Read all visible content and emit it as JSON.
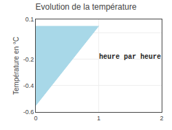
{
  "chart_data": {
    "type": "area",
    "title": "Evolution de la température",
    "ylabel": "Température en °C",
    "x": [
      0,
      0,
      1
    ],
    "values": [
      0.05,
      -0.55,
      0.05
    ],
    "color": "#a8d8e8",
    "xlim": [
      0,
      2
    ],
    "ylim": [
      -0.6,
      0.1
    ],
    "xticks": [
      0,
      1,
      2
    ],
    "yticks": [
      -0.6,
      -0.4,
      -0.2,
      {
        "value": 0.0,
        "label": null
      },
      0.1
    ],
    "grid": true,
    "annotations": [
      {
        "text": "heure par heure",
        "x": 1.5,
        "y": -0.185
      }
    ]
  }
}
